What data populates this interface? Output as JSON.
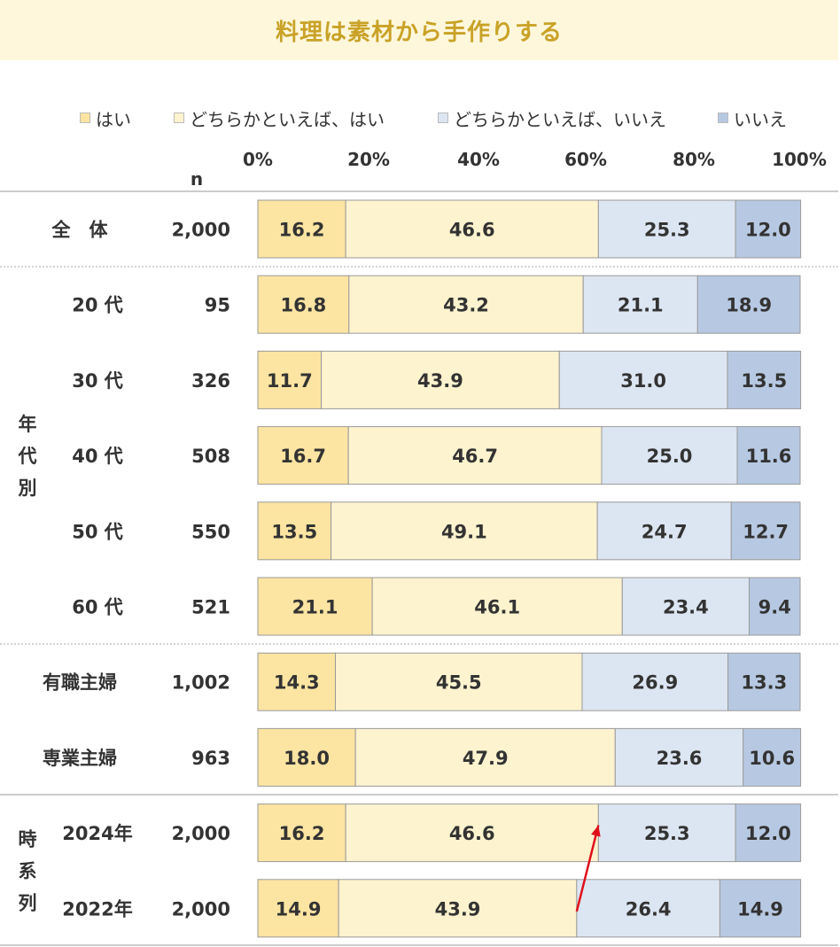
{
  "chart_data": {
    "type": "bar",
    "stacked": true,
    "orientation": "horizontal",
    "title": "料理は素材から手作りする",
    "n_label": "n",
    "xlim": [
      0,
      100
    ],
    "x_ticks": [
      "0%",
      "20%",
      "40%",
      "60%",
      "80%",
      "100%"
    ],
    "legend": [
      "はい",
      "どちらかといえば、はい",
      "どちらかといえば、いいえ",
      "いいえ"
    ],
    "colors": [
      "#FCE4A2",
      "#FEF3CF",
      "#DCE6F2",
      "#B7C9E2"
    ],
    "groups": [
      {
        "label": "",
        "rows": [
          0
        ]
      },
      {
        "label": "年代別",
        "rows": [
          1,
          2,
          3,
          4,
          5
        ]
      },
      {
        "label": "",
        "rows": [
          6,
          7
        ]
      },
      {
        "label": "時系列",
        "rows": [
          8,
          9
        ]
      }
    ],
    "rows": [
      {
        "label": "全　体",
        "n": "2,000",
        "values": [
          16.2,
          46.6,
          25.3,
          12.0
        ],
        "labels": [
          "16.2",
          "46.6",
          "25.3",
          "12.0"
        ]
      },
      {
        "label": "20 代",
        "n": "95",
        "values": [
          16.8,
          43.2,
          21.1,
          18.9
        ],
        "labels": [
          "16.8",
          "43.2",
          "21.1",
          "18.9"
        ]
      },
      {
        "label": "30 代",
        "n": "326",
        "values": [
          11.7,
          43.9,
          31.0,
          13.5
        ],
        "labels": [
          "11.7",
          "43.9",
          "31.0",
          "13.5"
        ]
      },
      {
        "label": "40 代",
        "n": "508",
        "values": [
          16.7,
          46.7,
          25.0,
          11.6
        ],
        "labels": [
          "16.7",
          "46.7",
          "25.0",
          "11.6"
        ]
      },
      {
        "label": "50 代",
        "n": "550",
        "values": [
          13.5,
          49.1,
          24.7,
          12.7
        ],
        "labels": [
          "13.5",
          "49.1",
          "24.7",
          "12.7"
        ]
      },
      {
        "label": "60 代",
        "n": "521",
        "values": [
          21.1,
          46.1,
          23.4,
          9.4
        ],
        "labels": [
          "21.1",
          "46.1",
          "23.4",
          "9.4"
        ]
      },
      {
        "label": "有職主婦",
        "n": "1,002",
        "values": [
          14.3,
          45.5,
          26.9,
          13.3
        ],
        "labels": [
          "14.3",
          "45.5",
          "26.9",
          "13.3"
        ]
      },
      {
        "label": "専業主婦",
        "n": "963",
        "values": [
          18.0,
          47.9,
          23.6,
          10.6
        ],
        "labels": [
          "18.0",
          "47.9",
          "23.6",
          "10.6"
        ]
      },
      {
        "label": "2024年",
        "n": "2,000",
        "values": [
          16.2,
          46.6,
          25.3,
          12.0
        ],
        "labels": [
          "16.2",
          "46.6",
          "25.3",
          "12.0"
        ]
      },
      {
        "label": "2022年",
        "n": "2,000",
        "values": [
          14.9,
          43.9,
          26.4,
          14.9
        ],
        "labels": [
          "14.9",
          "43.9",
          "26.4",
          "14.9"
        ]
      }
    ],
    "annotation": {
      "type": "arrow",
      "color": "#E0101A",
      "from": {
        "row": 9,
        "cum_value": 58.8
      },
      "to": {
        "row": 8,
        "cum_value": 62.8
      }
    }
  }
}
